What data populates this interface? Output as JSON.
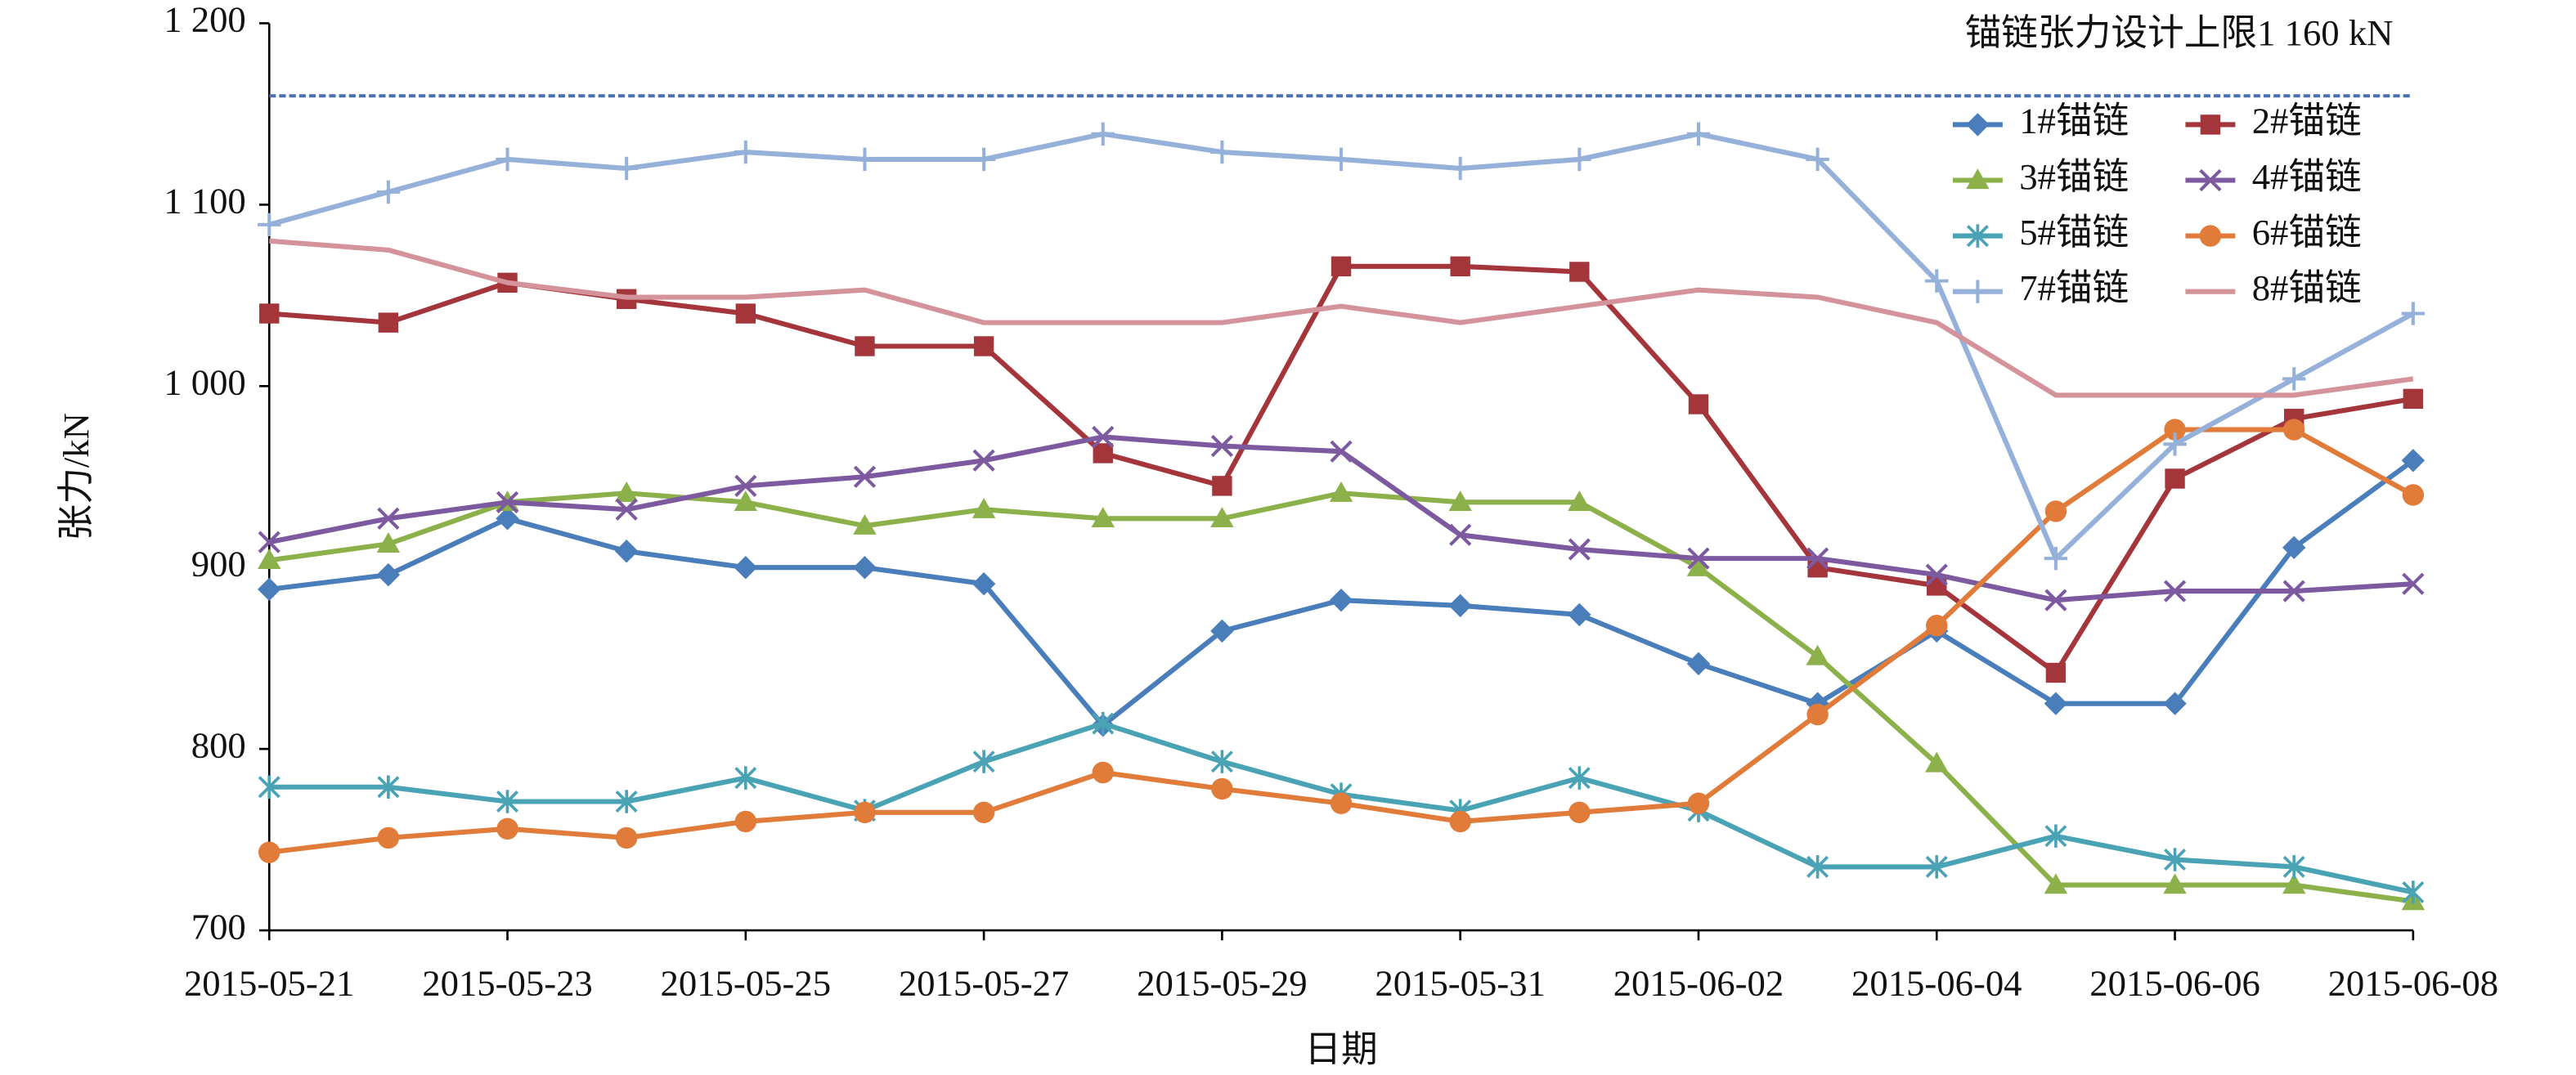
{
  "chart_data": {
    "type": "line",
    "x_label": "日期",
    "y_label": "张力/kN",
    "x": [
      "2015-05-21",
      "2015-05-22",
      "2015-05-23",
      "2015-05-24",
      "2015-05-25",
      "2015-05-26",
      "2015-05-27",
      "2015-05-28",
      "2015-05-29",
      "2015-05-30",
      "2015-05-31",
      "2015-06-01",
      "2015-06-02",
      "2015-06-03",
      "2015-06-04",
      "2015-06-05",
      "2015-06-06",
      "2015-06-07",
      "2015-06-08"
    ],
    "xlim": [
      "2015-05-21",
      "2015-06-08"
    ],
    "xticks": [
      "2015-05-21",
      "2015-05-23",
      "2015-05-25",
      "2015-05-27",
      "2015-05-29",
      "2015-05-31",
      "2015-06-02",
      "2015-06-04",
      "2015-06-06",
      "2015-06-08"
    ],
    "ylim": [
      700,
      1200
    ],
    "yticks": [
      700,
      800,
      900,
      {
        "value": 1000,
        "label": "1 000"
      },
      {
        "value": 1100,
        "label": "1 100"
      },
      {
        "value": 1200,
        "label": "1 200"
      }
    ],
    "grid": false,
    "legend": "upper right",
    "reference_line": {
      "value": 1160,
      "label": "锚链张力设计上限1 160 kN",
      "color": "#4a6fb5"
    },
    "series": [
      {
        "name": "1#锚链",
        "color": "#4a7ebb",
        "marker": "diamond",
        "values": [
          888,
          896,
          927,
          909,
          900,
          900,
          891,
          813,
          865,
          882,
          879,
          874,
          847,
          825,
          865,
          825,
          825,
          911,
          959
        ]
      },
      {
        "name": "2#锚链",
        "color": "#a3353b",
        "marker": "square",
        "values": [
          1040,
          1035,
          1057,
          1048,
          1040,
          1022,
          1022,
          963,
          945,
          1066,
          1066,
          1063,
          990,
          900,
          890,
          842,
          949,
          982,
          993
        ]
      },
      {
        "name": "3#锚链",
        "color": "#8cb04a",
        "marker": "triangle",
        "values": [
          904,
          913,
          936,
          941,
          936,
          923,
          932,
          927,
          927,
          941,
          936,
          936,
          900,
          851,
          792,
          725,
          725,
          725,
          716
        ]
      },
      {
        "name": "4#锚链",
        "color": "#7d5aa0",
        "marker": "x",
        "values": [
          914,
          927,
          936,
          932,
          945,
          950,
          959,
          972,
          967,
          964,
          918,
          910,
          905,
          905,
          896,
          882,
          887,
          887,
          891
        ]
      },
      {
        "name": "5#锚链",
        "color": "#4aa3b5",
        "marker": "star",
        "values": [
          779,
          779,
          771,
          771,
          784,
          766,
          793,
          814,
          793,
          775,
          766,
          784,
          766,
          735,
          735,
          752,
          739,
          735,
          721
        ]
      },
      {
        "name": "6#锚链",
        "color": "#e07b39",
        "marker": "circle",
        "values": [
          743,
          751,
          756,
          751,
          760,
          765,
          765,
          787,
          778,
          770,
          760,
          765,
          770,
          819,
          868,
          931,
          976,
          976,
          940
        ]
      },
      {
        "name": "7#锚链",
        "color": "#95b0d9",
        "marker": "plus",
        "values": [
          1089,
          1107,
          1125,
          1120,
          1129,
          1125,
          1125,
          1139,
          1129,
          1125,
          1120,
          1125,
          1139,
          1125,
          1058,
          905,
          968,
          1004,
          1040
        ]
      },
      {
        "name": "8#锚链",
        "color": "#d4929a",
        "marker": "none",
        "values": [
          1080,
          1075,
          1057,
          1049,
          1049,
          1053,
          1035,
          1035,
          1035,
          1044,
          1035,
          1044,
          1053,
          1049,
          1035,
          995,
          995,
          995,
          1004
        ]
      }
    ]
  }
}
